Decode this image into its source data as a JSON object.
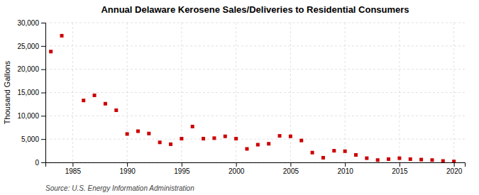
{
  "chart_data": {
    "type": "scatter",
    "title": "Annual Delaware Kerosene Sales/Deliveries to Residential Consumers",
    "ylabel": "Thousand Gallons",
    "annotations": [
      "Source: U.S. Energy Information Administration"
    ],
    "x": [
      1983,
      1984,
      1986,
      1987,
      1988,
      1989,
      1990,
      1991,
      1992,
      1993,
      1994,
      1995,
      1996,
      1997,
      1998,
      1999,
      2000,
      2001,
      2002,
      2003,
      2004,
      2005,
      2006,
      2007,
      2008,
      2009,
      2010,
      2011,
      2012,
      2013,
      2014,
      2015,
      2016,
      2017,
      2018,
      2019,
      2020
    ],
    "values": [
      23800,
      27200,
      13300,
      14400,
      12600,
      11200,
      6100,
      6700,
      6200,
      4300,
      3900,
      5100,
      7700,
      5100,
      5200,
      5600,
      5100,
      2900,
      3800,
      4000,
      5700,
      5600,
      4700,
      2100,
      1000,
      2500,
      2400,
      1600,
      900,
      500,
      700,
      900,
      700,
      600,
      500,
      300,
      200
    ],
    "color": "#cc0000",
    "marker": "square",
    "xlim": [
      1982.5,
      2021
    ],
    "ylim": [
      0,
      30000
    ],
    "xticks": [
      1985,
      1990,
      1995,
      2000,
      2005,
      2010,
      2015,
      2020
    ],
    "yticks": [
      0,
      {
        "value": 5000,
        "label": "5,000"
      },
      {
        "value": 10000,
        "label": "10,000"
      },
      {
        "value": 15000,
        "label": "15,000"
      },
      {
        "value": 20000,
        "label": "20,000"
      },
      {
        "value": 25000,
        "label": "25,000"
      },
      {
        "value": 30000,
        "label": "30,000"
      }
    ],
    "grid": true
  }
}
